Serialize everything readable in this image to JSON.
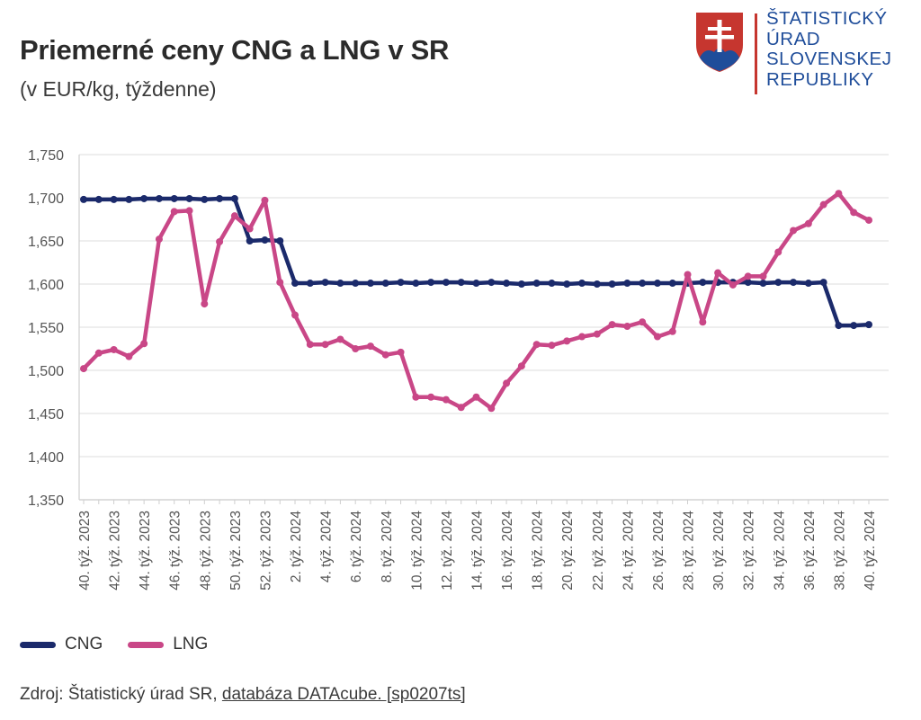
{
  "header": {
    "title": "Priemerné ceny CNG a LNG v SR",
    "subtitle": "(v EUR/kg, týždenne)"
  },
  "logo": {
    "lines": [
      "ŠTATISTICKÝ",
      "ÚRAD",
      "SLOVENSKEJ",
      "REPUBLIKY"
    ],
    "text_color": "#1f4d9a",
    "shield_color": "#c6362f",
    "hills_color": "#1f4d9a"
  },
  "legend": {
    "items": [
      {
        "label": "CNG",
        "color": "#1b2a6b"
      },
      {
        "label": "LNG",
        "color": "#c94787"
      }
    ]
  },
  "source": {
    "prefix": "Zdroj: Štatistický úrad SR, ",
    "link_text": "databáza DATAcube. [sp0207ts]"
  },
  "chart_data": {
    "type": "line",
    "title": "Priemerné ceny CNG a LNG v SR",
    "subtitle": "(v EUR/kg, týždenne)",
    "xlabel": "",
    "ylabel": "",
    "ylim": [
      1.35,
      1.75
    ],
    "yticks": [
      "1,350",
      "1,400",
      "1,450",
      "1,500",
      "1,550",
      "1,600",
      "1,650",
      "1,700",
      "1,750"
    ],
    "ytick_values": [
      1.35,
      1.4,
      1.45,
      1.5,
      1.55,
      1.6,
      1.65,
      1.7,
      1.75
    ],
    "grid": true,
    "legend_position": "bottom-left",
    "categories": [
      "40. týž. 2023",
      "41. týž. 2023",
      "42. týž. 2023",
      "43. týž. 2023",
      "44. týž. 2023",
      "45. týž. 2023",
      "46. týž. 2023",
      "47. týž. 2023",
      "48. týž. 2023",
      "49. týž. 2023",
      "50. týž. 2023",
      "51. týž. 2023",
      "52. týž. 2023",
      "1. týž. 2024",
      "2. týž. 2024",
      "3. týž. 2024",
      "4. týž. 2024",
      "5. týž. 2024",
      "6. týž. 2024",
      "7. týž. 2024",
      "8. týž. 2024",
      "9. týž. 2024",
      "10. týž. 2024",
      "11. týž. 2024",
      "12. týž. 2024",
      "13. týž. 2024",
      "14. týž. 2024",
      "15. týž. 2024",
      "16. týž. 2024",
      "17. týž. 2024",
      "18. týž. 2024",
      "19. týž. 2024",
      "20. týž. 2024",
      "21. týž. 2024",
      "22. týž. 2024",
      "23. týž. 2024",
      "24. týž. 2024",
      "25. týž. 2024",
      "26. týž. 2024",
      "27. týž. 2024",
      "28. týž. 2024",
      "29. týž. 2024",
      "30. týž. 2024",
      "31. týž. 2024",
      "32. týž. 2024",
      "33. týž. 2024",
      "34. týž. 2024",
      "35. týž. 2024",
      "36. týž. 2024",
      "37. týž. 2024",
      "38. týž. 2024",
      "39. týž. 2024",
      "40. týž. 2024"
    ],
    "xtick_labels": [
      "40. týž. 2023",
      "42. týž. 2023",
      "44. týž. 2023",
      "46. týž. 2023",
      "48. týž. 2023",
      "50. týž. 2023",
      "52. týž. 2023",
      "2. týž. 2024",
      "4. týž. 2024",
      "6. týž. 2024",
      "8. týž. 2024",
      "10. týž. 2024",
      "12. týž. 2024",
      "14. týž. 2024",
      "16. týž. 2024",
      "18. týž. 2024",
      "20. týž. 2024",
      "22. týž. 2024",
      "24. týž. 2024",
      "26. týž. 2024",
      "28. týž. 2024",
      "30. týž. 2024",
      "32. týž. 2024",
      "34. týž. 2024",
      "36. týž. 2024",
      "38. týž. 2024",
      "40. týž. 2024"
    ],
    "series": [
      {
        "name": "CNG",
        "color": "#1b2a6b",
        "values": [
          1.698,
          1.698,
          1.698,
          1.698,
          1.699,
          1.699,
          1.699,
          1.699,
          1.698,
          1.699,
          1.699,
          1.65,
          1.651,
          1.65,
          1.601,
          1.601,
          1.602,
          1.601,
          1.601,
          1.601,
          1.601,
          1.602,
          1.601,
          1.602,
          1.602,
          1.602,
          1.601,
          1.602,
          1.601,
          1.6,
          1.601,
          1.601,
          1.6,
          1.601,
          1.6,
          1.6,
          1.601,
          1.601,
          1.601,
          1.601,
          1.601,
          1.602,
          1.602,
          1.602,
          1.602,
          1.601,
          1.602,
          1.602,
          1.601,
          1.602,
          1.552,
          1.552,
          1.553
        ]
      },
      {
        "name": "LNG",
        "color": "#c94787",
        "values": [
          1.502,
          1.52,
          1.524,
          1.516,
          1.531,
          1.652,
          1.684,
          1.685,
          1.577,
          1.649,
          1.679,
          1.664,
          1.697,
          1.602,
          1.564,
          1.53,
          1.53,
          1.536,
          1.525,
          1.528,
          1.518,
          1.521,
          1.469,
          1.469,
          1.466,
          1.457,
          1.469,
          1.456,
          1.485,
          1.505,
          1.53,
          1.529,
          1.534,
          1.539,
          1.542,
          1.553,
          1.551,
          1.556,
          1.539,
          1.545,
          1.611,
          1.556,
          1.613,
          1.599,
          1.609,
          1.609,
          1.637,
          1.662,
          1.67,
          1.692,
          1.705,
          1.683,
          1.674
        ]
      }
    ]
  }
}
